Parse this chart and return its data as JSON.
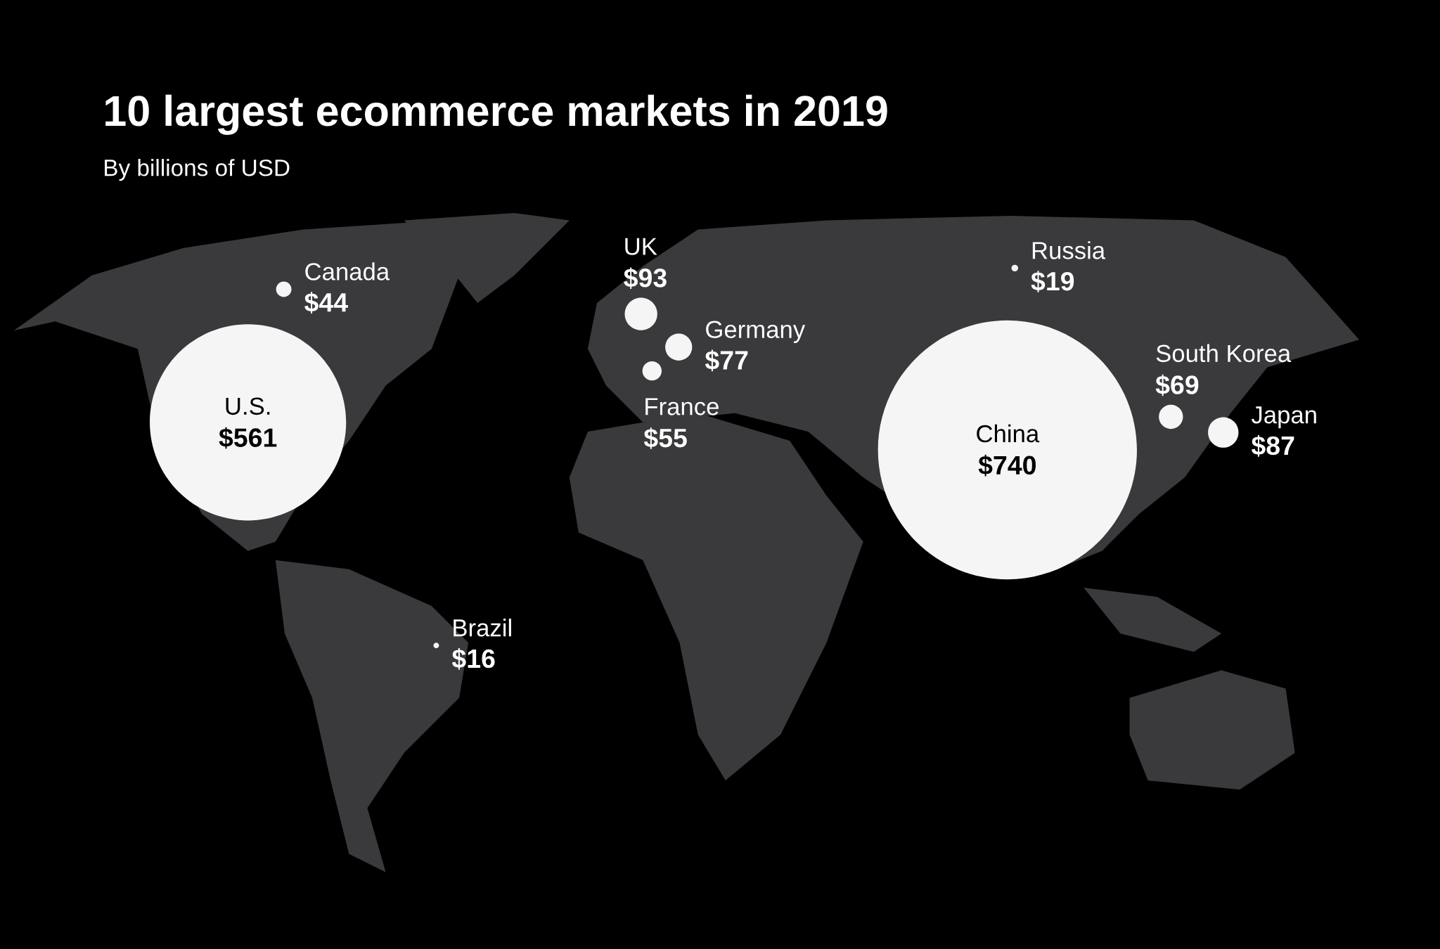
{
  "chart_data": {
    "type": "other",
    "title": "10 largest ecommerce markets in 2019",
    "subtitle": "By billions of USD",
    "categories": [
      "Canada",
      "U.S.",
      "UK",
      "Germany",
      "France",
      "Russia",
      "China",
      "South Korea",
      "Japan",
      "Brazil"
    ],
    "values": [
      44,
      561,
      93,
      77,
      55,
      19,
      740,
      69,
      87,
      16
    ],
    "value_labels": [
      "$44",
      "$561",
      "$93",
      "$77",
      "$55",
      "$19",
      "$740",
      "$69",
      "$87",
      "$16"
    ]
  }
}
